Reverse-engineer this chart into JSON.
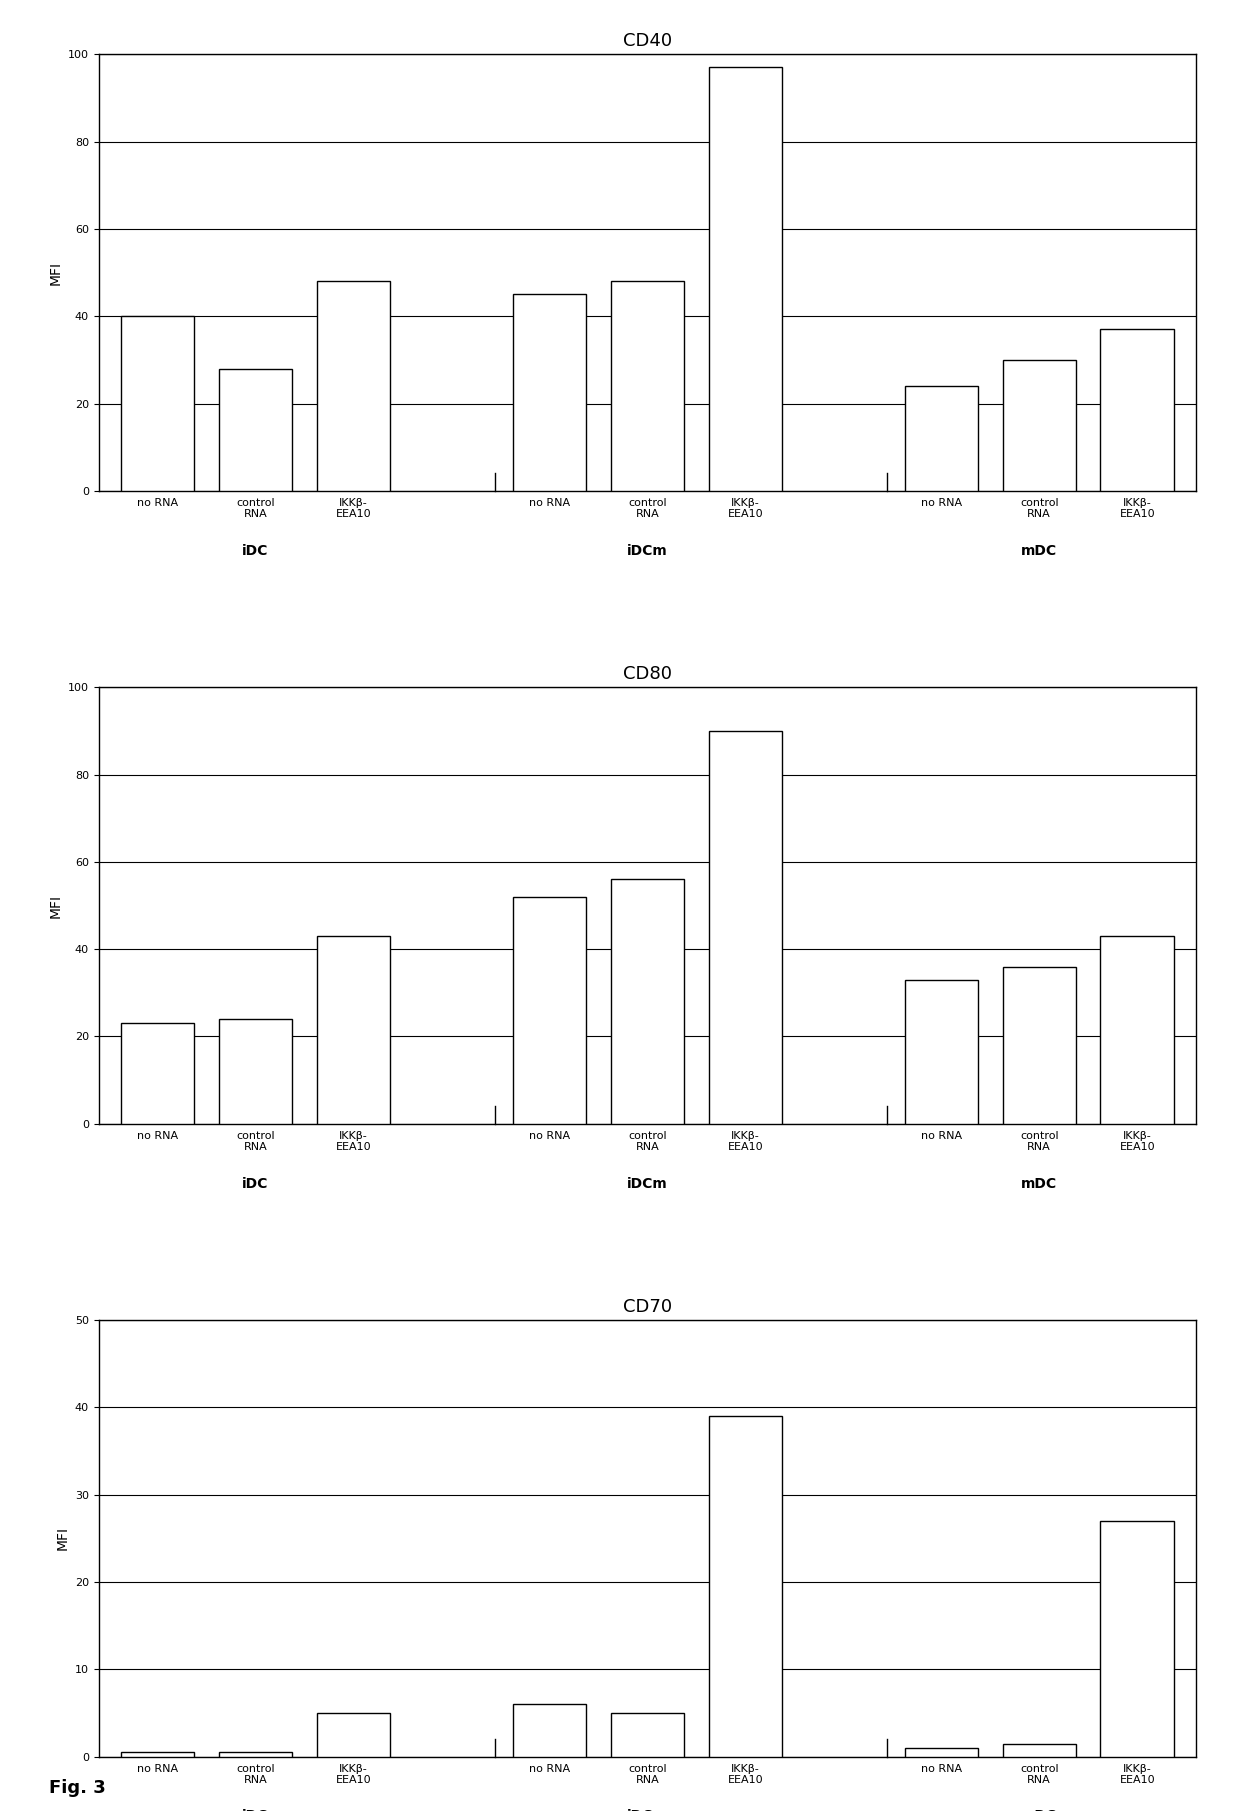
{
  "charts": [
    {
      "title": "CD40",
      "ylabel": "MFI",
      "ylim": [
        0,
        100
      ],
      "yticks": [
        0,
        20,
        40,
        60,
        80,
        100
      ],
      "bars": [
        40,
        28,
        48,
        45,
        48,
        97,
        24,
        30,
        37
      ],
      "group_labels": [
        "no RNA",
        "control\nRNA",
        "IKKβ-\nEEA10",
        "no RNA",
        "control\nRNA",
        "IKKβ-\nEEA10",
        "no RNA",
        "control\nRNA",
        "IKKβ-\nEEA10"
      ],
      "group_names": [
        "iDC",
        "iDCm",
        "mDC"
      ]
    },
    {
      "title": "CD80",
      "ylabel": "MFI",
      "ylim": [
        0,
        100
      ],
      "yticks": [
        0,
        20,
        40,
        60,
        80,
        100
      ],
      "bars": [
        23,
        24,
        43,
        52,
        56,
        90,
        33,
        36,
        43
      ],
      "group_labels": [
        "no RNA",
        "control\nRNA",
        "IKKβ-\nEEA10",
        "no RNA",
        "control\nRNA",
        "IKKβ-\nEEA10",
        "no RNA",
        "control\nRNA",
        "IKKβ-\nEEA10"
      ],
      "group_names": [
        "iDC",
        "iDCm",
        "mDC"
      ]
    },
    {
      "title": "CD70",
      "ylabel": "MFI",
      "ylim": [
        0,
        50
      ],
      "yticks": [
        0,
        10,
        20,
        30,
        40,
        50
      ],
      "bars": [
        0.5,
        0.5,
        5,
        6,
        5,
        39,
        1,
        1.5,
        27
      ],
      "group_labels": [
        "no RNA",
        "control\nRNA",
        "IKKβ-\nEEA10",
        "no RNA",
        "control\nRNA",
        "IKKβ-\nEEA10",
        "no RNA",
        "control\nRNA",
        "IKKβ-\nEEA10"
      ],
      "group_names": [
        "iDC",
        "iDCm",
        "mDC"
      ]
    }
  ],
  "fig3_label": "Fig. 3",
  "bar_color": "#ffffff",
  "bar_edgecolor": "#000000",
  "bar_width": 0.75,
  "background_color": "#ffffff",
  "grid_color": "#000000",
  "font_size_title": 13,
  "font_size_ticklabels": 8,
  "font_size_group": 10,
  "font_size_ylabel": 10,
  "font_size_fig": 13
}
